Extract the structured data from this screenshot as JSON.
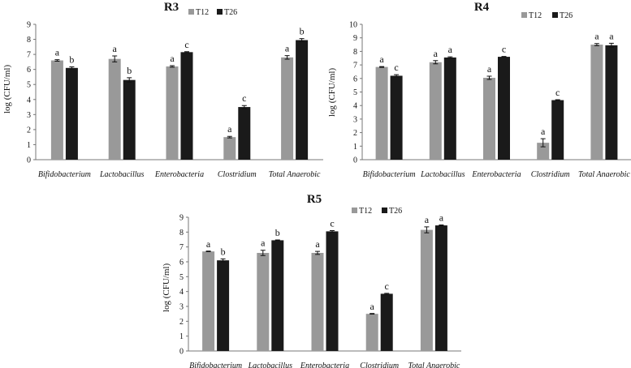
{
  "colors": {
    "T12": "#999999",
    "T26": "#1a1a1a",
    "axis": "#777777",
    "error": "#111111"
  },
  "chart_data": [
    {
      "type": "bar",
      "title": "R3",
      "ylabel": "log (CFU/ml)",
      "ylim": [
        0,
        9
      ],
      "yticks": [
        0,
        1,
        2,
        3,
        4,
        5,
        6,
        7,
        8,
        9
      ],
      "categories": [
        "Bifidobacterium",
        "Lactobacillus",
        "Enterobacteria",
        "Clostridium",
        "Total Anaerobic"
      ],
      "series": [
        {
          "name": "T12",
          "values": [
            6.6,
            6.7,
            6.2,
            1.5,
            6.8
          ],
          "errors": [
            0.05,
            0.2,
            0.05,
            0.05,
            0.12
          ],
          "labels": [
            "a",
            "a",
            "a",
            "a",
            "a"
          ]
        },
        {
          "name": "T26",
          "values": [
            6.1,
            5.3,
            7.15,
            3.5,
            7.95
          ],
          "errors": [
            0.07,
            0.15,
            0.03,
            0.1,
            0.1
          ],
          "labels": [
            "b",
            "b",
            "c",
            "c",
            "b"
          ]
        }
      ]
    },
    {
      "type": "bar",
      "title": "R4",
      "ylabel": "log (CFU/ml)",
      "ylim": [
        0,
        10
      ],
      "yticks": [
        0,
        1,
        2,
        3,
        4,
        5,
        6,
        7,
        8,
        9,
        10
      ],
      "categories": [
        "Bifidobacterium",
        "Lactobacillus",
        "Enterobacteria",
        "Clostridium",
        "Total Anaerobic"
      ],
      "series": [
        {
          "name": "T12",
          "values": [
            6.85,
            7.2,
            6.05,
            1.25,
            8.5
          ],
          "errors": [
            0.03,
            0.12,
            0.12,
            0.3,
            0.08
          ],
          "labels": [
            "a",
            "a",
            "a",
            "a",
            "a"
          ]
        },
        {
          "name": "T26",
          "values": [
            6.2,
            7.55,
            7.6,
            4.4,
            8.45
          ],
          "errors": [
            0.08,
            0.05,
            0.03,
            0.03,
            0.15
          ],
          "labels": [
            "c",
            "a",
            "c",
            "c",
            "a"
          ]
        }
      ]
    },
    {
      "type": "bar",
      "title": "R5",
      "ylabel": "log (CFU/ml)",
      "ylim": [
        0,
        9
      ],
      "yticks": [
        0,
        1,
        2,
        3,
        4,
        5,
        6,
        7,
        8,
        9
      ],
      "categories": [
        "Bifidobacterium",
        "Lactobacillus",
        "Enterobacteria",
        "Clostridium",
        "Total Anaerobic"
      ],
      "series": [
        {
          "name": "T12",
          "values": [
            6.7,
            6.6,
            6.6,
            2.5,
            8.15
          ],
          "errors": [
            0.02,
            0.18,
            0.1,
            0.02,
            0.2
          ],
          "labels": [
            "a",
            "a",
            "a",
            "a",
            "a"
          ]
        },
        {
          "name": "T26",
          "values": [
            6.1,
            7.45,
            8.05,
            3.85,
            8.45
          ],
          "errors": [
            0.1,
            0.02,
            0.05,
            0.03,
            0.03
          ],
          "labels": [
            "b",
            "b",
            "c",
            "c",
            "a"
          ]
        }
      ]
    }
  ]
}
